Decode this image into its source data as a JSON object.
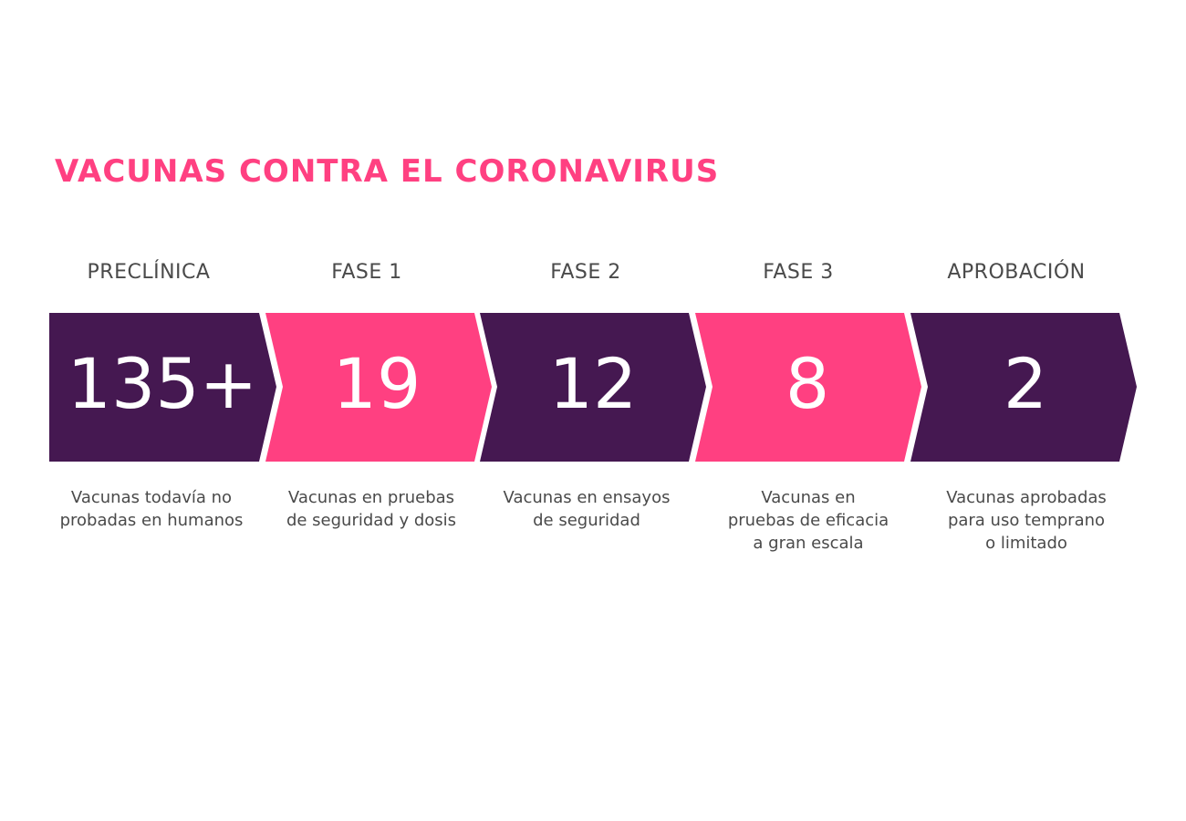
{
  "title": "VACUNAS CONTRA EL CORONAVIRUS",
  "colors": {
    "accent": "#ff4081",
    "dark": "#451851",
    "text": "#4a4a4a"
  },
  "stages": [
    {
      "label": "PRECLÍNICA",
      "count": "135+",
      "color": "#451851",
      "desc": [
        "Vacunas todavía no",
        "probadas en humanos"
      ]
    },
    {
      "label": "FASE 1",
      "count": "19",
      "color": "#ff4081",
      "desc": [
        "Vacunas en pruebas",
        "de seguridad y dosis"
      ]
    },
    {
      "label": "FASE 2",
      "count": "12",
      "color": "#451851",
      "desc": [
        "Vacunas en ensayos",
        "de seguridad"
      ]
    },
    {
      "label": "FASE 3",
      "count": "8",
      "color": "#ff4081",
      "desc": [
        "Vacunas en",
        "pruebas de eficacia",
        "a gran escala"
      ]
    },
    {
      "label": "APROBACIÓN",
      "count": "2",
      "color": "#451851",
      "desc": [
        "Vacunas aprobadas",
        "para uso temprano",
        "o limitado"
      ]
    }
  ]
}
